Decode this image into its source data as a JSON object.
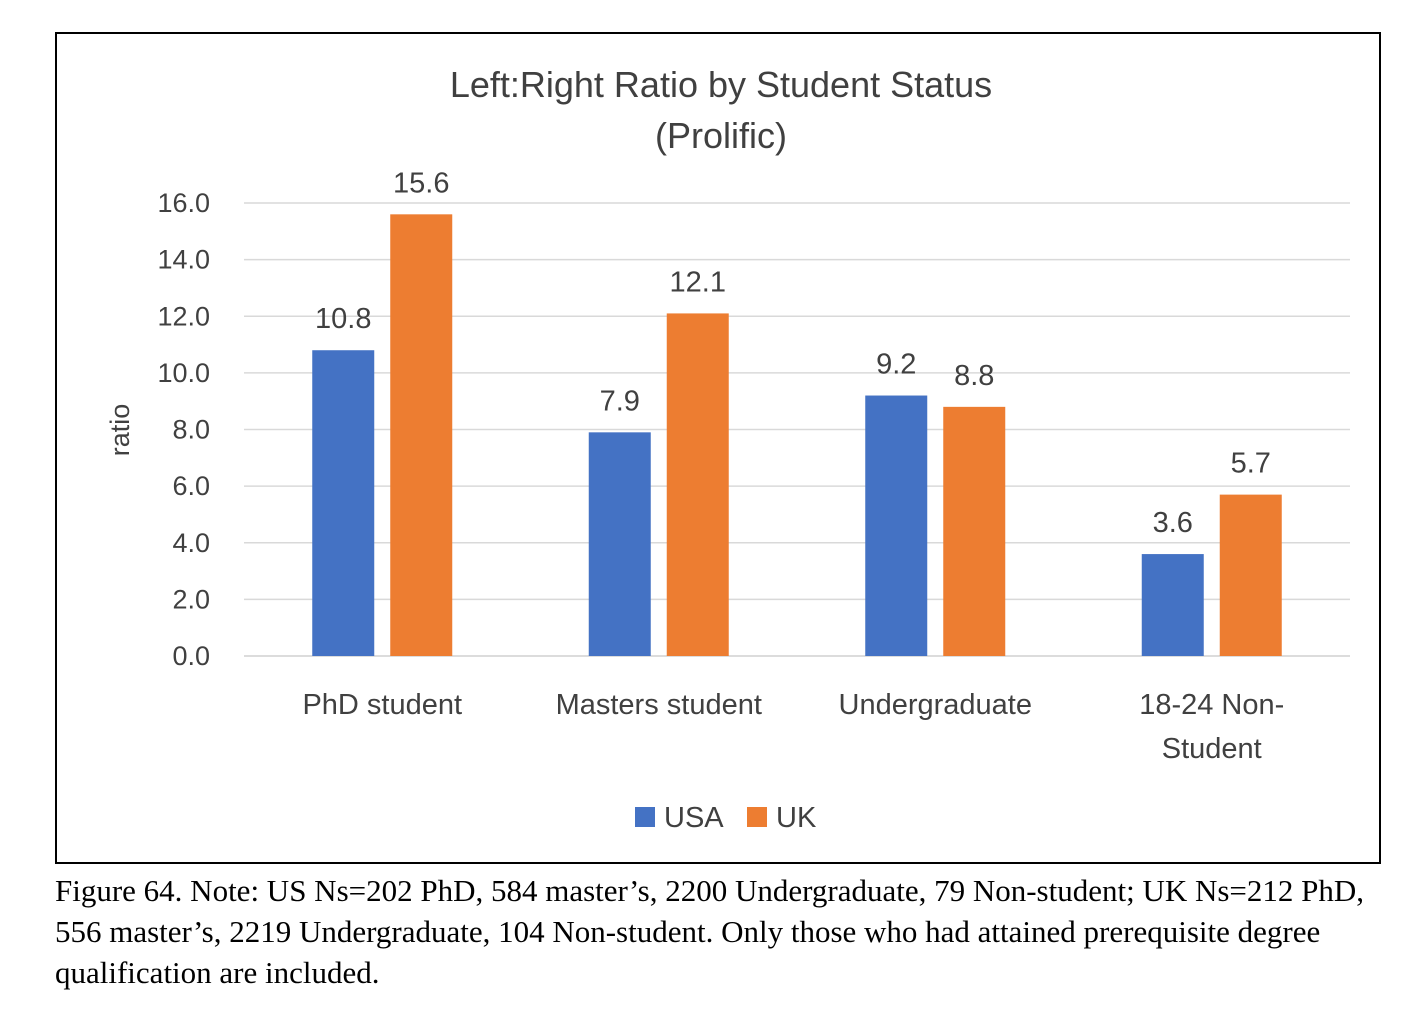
{
  "chart_data": {
    "type": "bar",
    "title": "Left:Right Ratio by Student Status",
    "subtitle": "(Prolific)",
    "xlabel": "",
    "ylabel": "ratio",
    "ylim": [
      0,
      16
    ],
    "yticks": [
      "0.0",
      "2.0",
      "4.0",
      "6.0",
      "8.0",
      "10.0",
      "12.0",
      "14.0",
      "16.0"
    ],
    "ytick_values": [
      0,
      2,
      4,
      6,
      8,
      10,
      12,
      14,
      16
    ],
    "categories": [
      [
        "PhD student"
      ],
      [
        "Masters student"
      ],
      [
        "Undergraduate"
      ],
      [
        "18-24 Non-",
        "Student"
      ]
    ],
    "series": [
      {
        "name": "USA",
        "color": "#4472C4",
        "values": [
          10.8,
          7.9,
          9.2,
          3.6
        ],
        "labels": [
          "10.8",
          "7.9",
          "9.2",
          "3.6"
        ]
      },
      {
        "name": "UK",
        "color": "#ED7D31",
        "values": [
          15.6,
          12.1,
          8.8,
          5.7
        ],
        "labels": [
          "15.6",
          "12.1",
          "8.8",
          "5.7"
        ]
      }
    ],
    "grid": true,
    "legend_position": "bottom"
  },
  "caption": "Figure 64. Note: US Ns=202 PhD, 584 master’s, 2200 Undergraduate, 79 Non-student; UK Ns=212 PhD, 556 master’s, 2219 Undergraduate, 104 Non-student. Only those who had attained prerequisite degree qualification are included."
}
